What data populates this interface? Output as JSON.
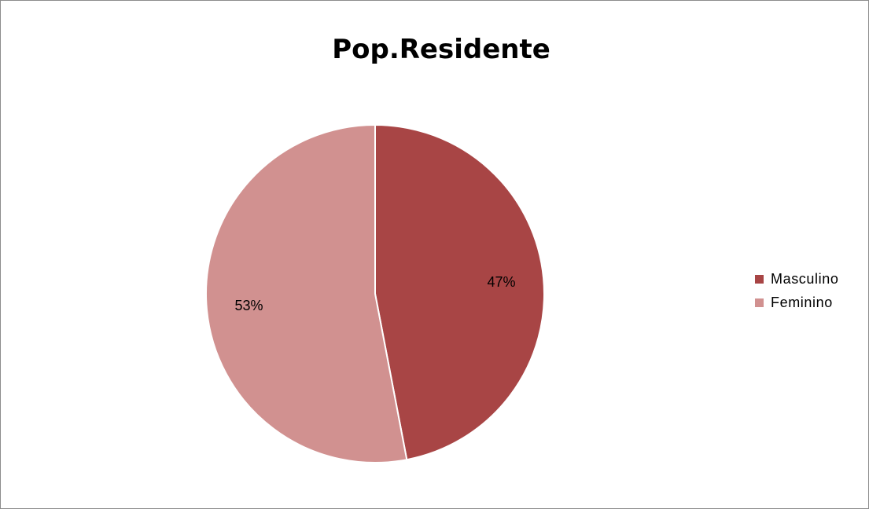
{
  "chart_data": {
    "type": "pie",
    "title": "Pop.Residente",
    "categories": [
      "Masculino",
      "Feminino"
    ],
    "values": [
      47,
      53
    ],
    "data_labels": [
      "47%",
      "53%"
    ],
    "colors": [
      "#a84545",
      "#d19190"
    ],
    "legend_position": "right",
    "start_angle": "12 o'clock",
    "direction": "clockwise"
  }
}
